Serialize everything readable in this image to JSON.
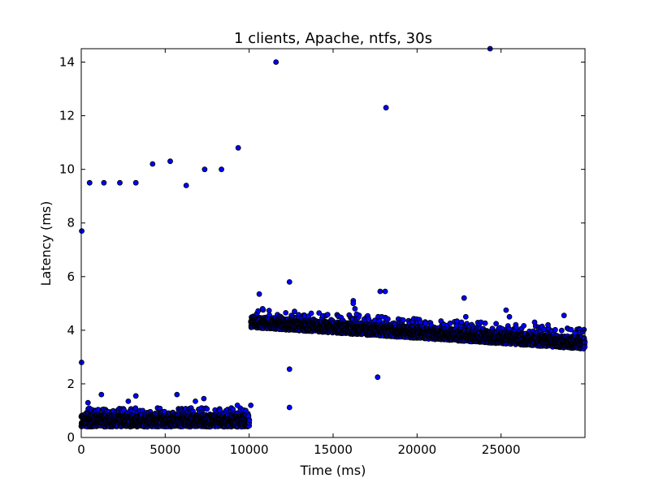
{
  "chart_data": {
    "type": "scatter",
    "title": "1 clients, Apache, ntfs, 30s",
    "xlabel": "Time (ms)",
    "ylabel": "Latency (ms)",
    "xlim": [
      0,
      30000
    ],
    "ylim": [
      0,
      14.5
    ],
    "xticks": [
      0,
      5000,
      10000,
      15000,
      20000,
      25000
    ],
    "yticks": [
      0,
      2,
      4,
      6,
      8,
      10,
      12,
      14
    ],
    "grid": false,
    "legend": "none",
    "marker_color": "#0000ff",
    "marker_edge_color": "#000000",
    "band_data": [
      {
        "x_start": 0,
        "x_end": 10000,
        "y_low": 0.4,
        "y_high": 0.85,
        "y_upper_spread": 1.1
      },
      {
        "x_start": 10100,
        "x_end": 30000,
        "y_low_start": 4.1,
        "y_high_start": 4.5,
        "y_low_end": 3.3,
        "y_high_end": 3.75
      }
    ],
    "outliers": [
      {
        "x": 30,
        "y": 7.7
      },
      {
        "x": 20,
        "y": 2.8
      },
      {
        "x": 500,
        "y": 9.5
      },
      {
        "x": 1350,
        "y": 9.5
      },
      {
        "x": 2300,
        "y": 9.5
      },
      {
        "x": 3250,
        "y": 9.5
      },
      {
        "x": 4250,
        "y": 10.2
      },
      {
        "x": 5300,
        "y": 10.3
      },
      {
        "x": 6250,
        "y": 9.4
      },
      {
        "x": 7350,
        "y": 10.0
      },
      {
        "x": 8350,
        "y": 10.0
      },
      {
        "x": 9350,
        "y": 10.8
      },
      {
        "x": 11600,
        "y": 14.0
      },
      {
        "x": 18150,
        "y": 12.3
      },
      {
        "x": 24350,
        "y": 14.5
      },
      {
        "x": 12400,
        "y": 5.8
      },
      {
        "x": 10600,
        "y": 5.35
      },
      {
        "x": 16200,
        "y": 5.1
      },
      {
        "x": 16200,
        "y": 5.0
      },
      {
        "x": 17800,
        "y": 5.45
      },
      {
        "x": 18100,
        "y": 5.45
      },
      {
        "x": 22800,
        "y": 5.2
      },
      {
        "x": 25300,
        "y": 4.75
      },
      {
        "x": 28750,
        "y": 4.55
      },
      {
        "x": 12400,
        "y": 2.55
      },
      {
        "x": 17650,
        "y": 2.25
      },
      {
        "x": 12400,
        "y": 1.12
      },
      {
        "x": 1200,
        "y": 1.6
      },
      {
        "x": 3250,
        "y": 1.55
      },
      {
        "x": 5700,
        "y": 1.6
      },
      {
        "x": 7300,
        "y": 1.45
      },
      {
        "x": 2800,
        "y": 1.35
      },
      {
        "x": 6800,
        "y": 1.35
      },
      {
        "x": 400,
        "y": 1.3
      },
      {
        "x": 9300,
        "y": 1.2
      },
      {
        "x": 10100,
        "y": 1.2
      },
      {
        "x": 10800,
        "y": 4.8
      },
      {
        "x": 12700,
        "y": 4.7
      },
      {
        "x": 16300,
        "y": 4.8
      },
      {
        "x": 16400,
        "y": 4.6
      },
      {
        "x": 17900,
        "y": 4.5
      },
      {
        "x": 20200,
        "y": 4.3
      },
      {
        "x": 22900,
        "y": 4.5
      },
      {
        "x": 23800,
        "y": 4.3
      },
      {
        "x": 25500,
        "y": 4.5
      },
      {
        "x": 27000,
        "y": 4.3
      },
      {
        "x": 27800,
        "y": 4.2
      },
      {
        "x": 29400,
        "y": 3.9
      }
    ]
  }
}
